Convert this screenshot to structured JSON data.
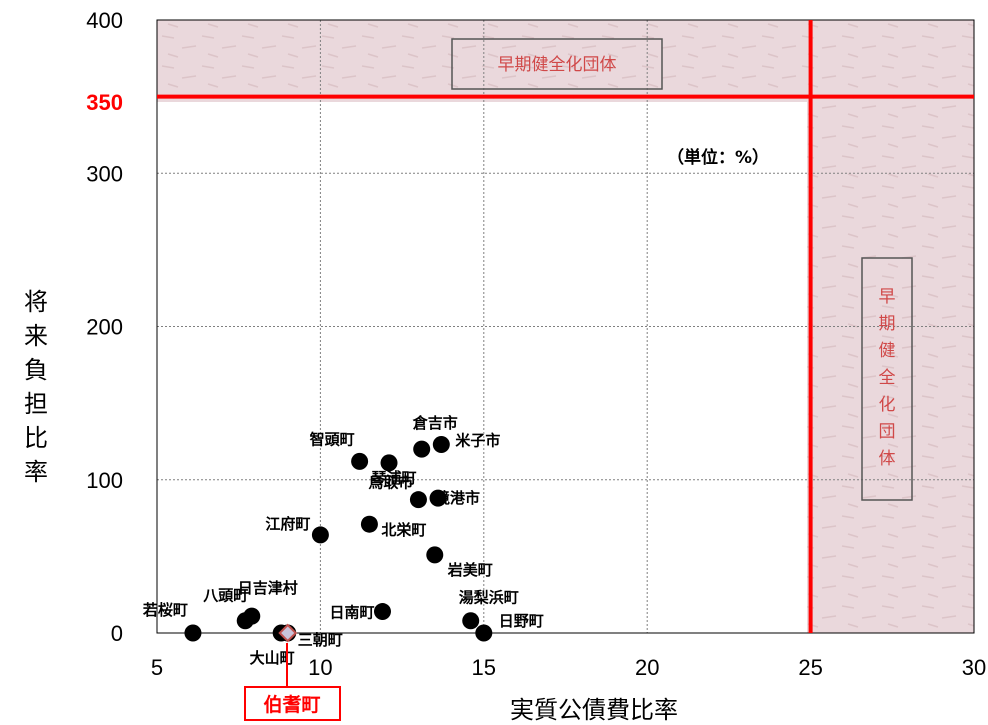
{
  "chart_data": {
    "type": "scatter",
    "xlabel": "実質公債費比率",
    "ylabel": "将来負担比率",
    "xlim": [
      5,
      30
    ],
    "ylim": [
      0,
      400
    ],
    "xticks": [
      "5",
      "10",
      "15",
      "20",
      "25",
      "30"
    ],
    "yticks": [
      "0",
      "100",
      "200",
      "300",
      "400"
    ],
    "threshold_y_label": "350",
    "threshold_x": 25,
    "threshold_y": 350,
    "unit_note": "（単位：%）",
    "zone_label": "早期健全化団体",
    "grid": true,
    "points": [
      {
        "name": "倉吉市",
        "x": 13.1,
        "y": 120
      },
      {
        "name": "米子市",
        "x": 13.7,
        "y": 123
      },
      {
        "name": "智頭町",
        "x": 11.2,
        "y": 112
      },
      {
        "name": "琴浦町",
        "x": 12.1,
        "y": 111
      },
      {
        "name": "鳥取市",
        "x": 13.0,
        "y": 87
      },
      {
        "name": "境港市",
        "x": 13.6,
        "y": 88
      },
      {
        "name": "北栄町",
        "x": 11.5,
        "y": 71
      },
      {
        "name": "江府町",
        "x": 10.0,
        "y": 64
      },
      {
        "name": "岩美町",
        "x": 13.5,
        "y": 51
      },
      {
        "name": "日吉津村",
        "x": 7.9,
        "y": 11
      },
      {
        "name": "八頭町",
        "x": 7.7,
        "y": 8
      },
      {
        "name": "若桜町",
        "x": 6.1,
        "y": 0
      },
      {
        "name": "大山町",
        "x": 8.8,
        "y": 0
      },
      {
        "name": "三朝町",
        "x": 9.0,
        "y": 0
      },
      {
        "name": "日南町",
        "x": 11.9,
        "y": 14
      },
      {
        "name": "湯梨浜町",
        "x": 14.6,
        "y": 8
      },
      {
        "name": "日野町",
        "x": 15.0,
        "y": 0
      }
    ],
    "highlight": {
      "name": "伯耆町",
      "x": 9.0,
      "y": 0
    },
    "colors": {
      "threshold": "#ff0000",
      "zone_fill": "#ead8dc",
      "point": "#000000",
      "grid": "#808080"
    }
  }
}
